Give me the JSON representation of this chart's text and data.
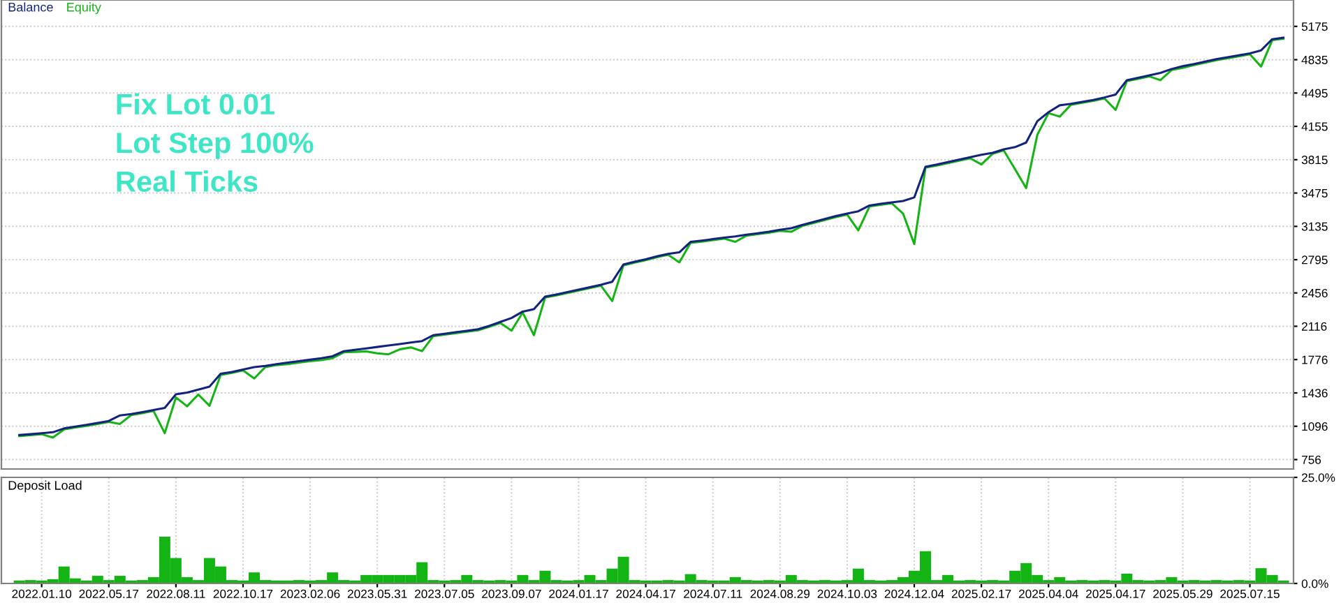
{
  "chart_data": [
    {
      "type": "line",
      "title": null,
      "legend": "top left",
      "grid": true,
      "tick_labels": "y",
      "marker": "none",
      "line_style": "solid",
      "categories": [
        null,
        null,
        null,
        null,
        null,
        null,
        null,
        null,
        null,
        null,
        null,
        null,
        null,
        null,
        null,
        null,
        null,
        null,
        null,
        null,
        null,
        null,
        null,
        null,
        null,
        null,
        null,
        null,
        null,
        null,
        null,
        null,
        null,
        null,
        null,
        null,
        null,
        null,
        null,
        null,
        null,
        null,
        null,
        null,
        null,
        null,
        null,
        null,
        null,
        null,
        null,
        null,
        null,
        null,
        null,
        null,
        null,
        null,
        null,
        null,
        null,
        null,
        null,
        null,
        null,
        null,
        null,
        null,
        null,
        null,
        null,
        null,
        null,
        null,
        null,
        null,
        null,
        null,
        null,
        null,
        null,
        null,
        null,
        null,
        null,
        null,
        null,
        null,
        null,
        null,
        null,
        null,
        null,
        null,
        null,
        null,
        null,
        null,
        null,
        null,
        null,
        null,
        null,
        null,
        null,
        null,
        null,
        null,
        null,
        null,
        null,
        null,
        null,
        null
      ],
      "ylim": [
        660,
        5444
      ],
      "yticks": [
        756,
        1096,
        1436,
        1776,
        2116,
        2456,
        2795,
        3135,
        3475,
        3815,
        4155,
        4495,
        4835,
        5175
      ],
      "series": [
        {
          "name": "Equity",
          "color": "#14b414",
          "values": [
            996,
            1005,
            1015,
            980,
            1064,
            1083,
            1100,
            1120,
            1140,
            1120,
            1210,
            1230,
            1252,
            1026,
            1390,
            1300,
            1420,
            1305,
            1620,
            1640,
            1665,
            1584,
            1700,
            1720,
            1730,
            1745,
            1760,
            1770,
            1790,
            1850,
            1855,
            1860,
            1840,
            1830,
            1880,
            1900,
            1862,
            2015,
            2030,
            2045,
            2060,
            2075,
            2110,
            2150,
            2071,
            2256,
            2025,
            2409,
            2430,
            2455,
            2480,
            2505,
            2530,
            2373,
            2736,
            2765,
            2790,
            2820,
            2845,
            2768,
            2967,
            2980,
            2995,
            3010,
            2977,
            3040,
            3055,
            3070,
            3090,
            3080,
            3140,
            3170,
            3200,
            3230,
            3255,
            3094,
            3338,
            3355,
            3370,
            3265,
            2954,
            3733,
            3755,
            3780,
            3805,
            3830,
            3766,
            3875,
            3910,
            3720,
            3525,
            4069,
            4290,
            4254,
            4375,
            4395,
            4415,
            4440,
            4323,
            4616,
            4640,
            4665,
            4626,
            4730,
            4751,
            4780,
            4805,
            4830,
            4850,
            4870,
            4890,
            4765,
            5034,
            5050
          ]
        },
        {
          "name": "Balance",
          "color": "#13237f",
          "values": [
            1006,
            1015,
            1025,
            1035,
            1074,
            1093,
            1110,
            1130,
            1150,
            1207,
            1220,
            1240,
            1262,
            1283,
            1422,
            1440,
            1470,
            1500,
            1631,
            1650,
            1675,
            1700,
            1712,
            1730,
            1745,
            1760,
            1775,
            1790,
            1810,
            1862,
            1875,
            1890,
            1905,
            1920,
            1935,
            1950,
            1965,
            2025,
            2040,
            2055,
            2070,
            2085,
            2120,
            2160,
            2200,
            2266,
            2290,
            2419,
            2440,
            2465,
            2490,
            2515,
            2540,
            2570,
            2746,
            2775,
            2800,
            2830,
            2855,
            2870,
            2977,
            2990,
            3005,
            3020,
            3032,
            3050,
            3065,
            3080,
            3100,
            3116,
            3150,
            3180,
            3210,
            3240,
            3265,
            3289,
            3348,
            3365,
            3380,
            3394,
            3430,
            3743,
            3765,
            3790,
            3815,
            3840,
            3865,
            3885,
            3920,
            3943,
            3990,
            4208,
            4300,
            4370,
            4385,
            4405,
            4425,
            4450,
            4480,
            4626,
            4650,
            4675,
            4700,
            4740,
            4770,
            4790,
            4815,
            4840,
            4860,
            4880,
            4900,
            4930,
            5044,
            5060
          ]
        }
      ],
      "annotations": [
        "Fix Lot 0.01\nLot Step 100%\nReal Ticks"
      ]
    },
    {
      "type": "bar",
      "title": "Deposit Load",
      "grid": "x",
      "color": "#14b414",
      "categories": [
        null,
        null,
        "2022.01.10",
        null,
        null,
        null,
        null,
        null,
        "2022.05.17",
        null,
        null,
        null,
        null,
        null,
        "2022.08.11",
        null,
        null,
        null,
        null,
        null,
        "2022.10.17",
        null,
        null,
        null,
        null,
        null,
        "2023.02.06",
        null,
        null,
        null,
        null,
        null,
        "2023.05.31",
        null,
        null,
        null,
        null,
        null,
        "2023.07.05",
        null,
        null,
        null,
        null,
        null,
        "2023.09.07",
        null,
        null,
        null,
        null,
        null,
        "2024.01.17",
        null,
        null,
        null,
        null,
        null,
        "2024.04.17",
        null,
        null,
        null,
        null,
        null,
        "2024.07.11",
        null,
        null,
        null,
        null,
        null,
        "2024.08.29",
        null,
        null,
        null,
        null,
        null,
        "2024.10.03",
        null,
        null,
        null,
        null,
        null,
        "2024.12.04",
        null,
        null,
        null,
        null,
        null,
        "2025.02.17",
        null,
        null,
        null,
        null,
        null,
        "2025.04.04",
        null,
        null,
        null,
        null,
        null,
        "2025.04.17",
        null,
        null,
        null,
        null,
        null,
        "2025.05.29",
        null,
        null,
        null,
        null,
        null,
        "2025.07.15",
        null,
        null,
        null
      ],
      "ylim": [
        0,
        25
      ],
      "yticks": [
        {
          "value": 0,
          "label": "0.0%"
        },
        {
          "value": 25,
          "label": "25.0%"
        }
      ],
      "values": [
        0.7,
        0.8,
        0.7,
        1.0,
        4,
        1.2,
        0.7,
        1.8,
        0.8,
        1.8,
        0.7,
        0.8,
        1.5,
        11,
        6,
        1.5,
        0.8,
        6,
        4,
        0.8,
        0.7,
        2.6,
        0.8,
        0.7,
        0.7,
        0.8,
        0.7,
        0.8,
        2.6,
        0.8,
        0.7,
        2,
        2,
        2,
        2,
        2,
        5,
        0.8,
        0.7,
        0.8,
        2,
        0.8,
        0.7,
        0.8,
        0.7,
        2,
        0.8,
        3,
        0.8,
        0.7,
        0.8,
        2,
        0.8,
        3.5,
        6.3,
        0.8,
        0.7,
        0.7,
        0.8,
        0.7,
        2.2,
        0.8,
        0.7,
        0.7,
        1.5,
        0.8,
        0.7,
        0.8,
        0.7,
        2,
        0.8,
        0.7,
        0.8,
        0.7,
        0.8,
        3.5,
        0.8,
        0.7,
        0.8,
        1.5,
        3,
        7.6,
        0.8,
        2,
        0.7,
        0.8,
        0.7,
        0.8,
        0.7,
        3,
        4.8,
        2,
        0.8,
        1.5,
        0.7,
        0.8,
        0.7,
        0.8,
        0.7,
        2.3,
        0.8,
        0.7,
        0.8,
        1.5,
        0.7,
        0.8,
        0.7,
        0.8,
        0.7,
        0.8,
        0.7,
        3.6,
        2,
        0.7
      ]
    }
  ]
}
